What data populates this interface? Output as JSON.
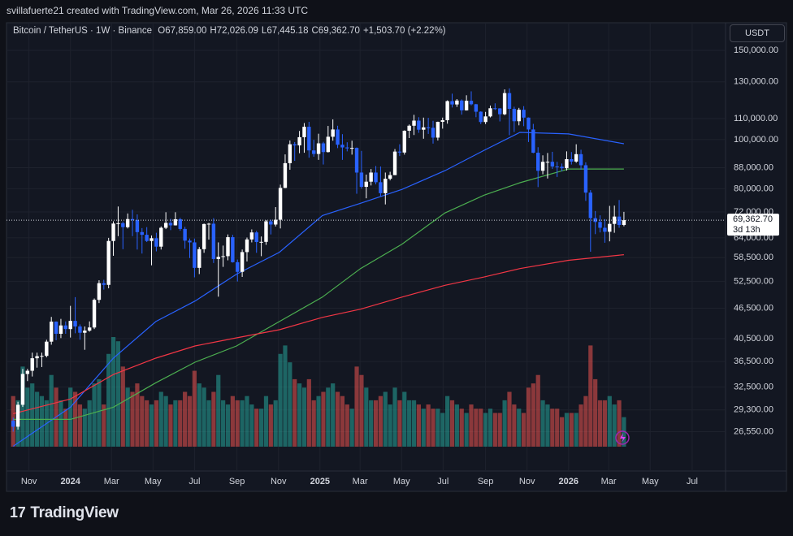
{
  "attribution": "svillafuerte21 created with TradingView.com, Mar 26, 2026 11:33 UTC",
  "logo": "TradingView",
  "chart_data": {
    "type": "candlestick",
    "title": "Bitcoin / TetherUS · 1W · Binance",
    "legend_items": [
      {
        "key": "O",
        "value": "67,859.00"
      },
      {
        "key": "H",
        "value": "72,026.09"
      },
      {
        "key": "L",
        "value": "67,445.18"
      },
      {
        "key": "C",
        "value": "69,362.70"
      }
    ],
    "change": "+1,503.70 (+2.22%)",
    "currency": "USDT",
    "countdown": "3d 13h",
    "price_label": {
      "value": 69362.7,
      "label": "69,362.70"
    },
    "log_scale": true,
    "grid": true,
    "up_color": "#ffffff",
    "down_color": "#2962ff",
    "volume_up_color": "#26a69a",
    "volume_down_color": "#ef5350",
    "xlim": [
      -1.4,
      149.3
    ],
    "xticks": [
      {
        "value": 3.3,
        "label": "Nov"
      },
      {
        "value": 12,
        "label": "2024"
      },
      {
        "value": 20.6,
        "label": "Mar"
      },
      {
        "value": 29.3,
        "label": "May"
      },
      {
        "value": 38,
        "label": "Jul"
      },
      {
        "value": 46.9,
        "label": "Sep"
      },
      {
        "value": 55.6,
        "label": "Nov"
      },
      {
        "value": 64.3,
        "label": "2025"
      },
      {
        "value": 72.7,
        "label": "Mar"
      },
      {
        "value": 81.4,
        "label": "May"
      },
      {
        "value": 90.1,
        "label": "Jul"
      },
      {
        "value": 99,
        "label": "Sep"
      },
      {
        "value": 107.7,
        "label": "Nov"
      },
      {
        "value": 116.4,
        "label": "2026"
      },
      {
        "value": 124.8,
        "label": "Mar"
      },
      {
        "value": 133.5,
        "label": "May"
      },
      {
        "value": 142.3,
        "label": "Jul"
      }
    ],
    "ylim": [
      22200,
      170000
    ],
    "yticks": [
      {
        "value": 150000,
        "label": "150,000.00"
      },
      {
        "value": 130000,
        "label": "130,000.00"
      },
      {
        "value": 110000,
        "label": "110,000.00"
      },
      {
        "value": 100000,
        "label": "100,000.00"
      },
      {
        "value": 88000,
        "label": "88,000.00"
      },
      {
        "value": 80000,
        "label": "80,000.00"
      },
      {
        "value": 72000,
        "label": "72,000.00"
      },
      {
        "value": 64000,
        "label": "64,000.00"
      },
      {
        "value": 58500,
        "label": "58,500.00"
      },
      {
        "value": 52500,
        "label": "52,500.00"
      },
      {
        "value": 46500,
        "label": "46,500.00"
      },
      {
        "value": 40500,
        "label": "40,500.00"
      },
      {
        "value": 36500,
        "label": "36,500.00"
      },
      {
        "value": 32500,
        "label": "32,500.00"
      },
      {
        "value": 29300,
        "label": "29,300.00"
      },
      {
        "value": 26550,
        "label": "26,550.00"
      }
    ],
    "open": [
      27900,
      27150,
      29990,
      34500,
      35000,
      37050,
      37400,
      37450,
      39950,
      43750,
      41400,
      43000,
      42300,
      43900,
      42800,
      41600,
      42000,
      42600,
      48300,
      52100,
      51700,
      63100,
      68300,
      68400,
      67200,
      69700,
      69400,
      65700,
      64900,
      63100,
      63900,
      61500,
      67000,
      68500,
      67750,
      69650,
      66650,
      63200,
      62700,
      55850,
      60800,
      68150,
      68250,
      58150,
      58700,
      58900,
      64200,
      57300,
      54850,
      60000,
      63550,
      65600,
      62800,
      62850,
      69000,
      68000,
      69500,
      80300,
      89850,
      97900,
      97400,
      101100,
      106000,
      95200,
      93700,
      98300,
      94500,
      101300,
      104700,
      97700,
      96500,
      96100,
      96300,
      86100,
      80700,
      82600,
      86100,
      82400,
      78400,
      83700,
      85100,
      94700,
      94300,
      104100,
      106500,
      109000,
      104600,
      105700,
      105500,
      100900,
      108400,
      109200,
      119100,
      117300,
      119400,
      114200,
      119300,
      117400,
      113500,
      108300,
      111100,
      115300,
      115200,
      112200,
      123500,
      115000,
      108700,
      114500,
      110500,
      104700,
      94200,
      86800,
      90400,
      90400,
      88500,
      88400,
      87800,
      91500,
      90500,
      93600,
      89000,
      78600,
      70000,
      68800,
      67000,
      65800,
      68200,
      70500,
      67859
    ],
    "high": [
      28300,
      30400,
      35300,
      35300,
      38000,
      38000,
      38000,
      40300,
      44700,
      43800,
      44300,
      43800,
      47000,
      48900,
      43200,
      42800,
      43800,
      48600,
      52800,
      52900,
      64000,
      69000,
      73800,
      68900,
      71500,
      72700,
      71200,
      66900,
      67200,
      64700,
      65500,
      67400,
      71900,
      69800,
      71900,
      70100,
      67300,
      63800,
      63800,
      61400,
      68300,
      68500,
      70000,
      62700,
      61800,
      65000,
      64900,
      58000,
      60700,
      64100,
      66500,
      66100,
      64400,
      69400,
      69500,
      73600,
      81500,
      93500,
      99600,
      98900,
      104000,
      107800,
      108400,
      99900,
      102700,
      99000,
      106400,
      109600,
      106500,
      102500,
      98800,
      99500,
      96500,
      95000,
      85300,
      87500,
      88700,
      88500,
      86100,
      86400,
      95800,
      97900,
      104300,
      107100,
      111900,
      110700,
      110500,
      110400,
      108900,
      108500,
      110500,
      119500,
      123200,
      120200,
      120000,
      122300,
      124500,
      117600,
      113700,
      113400,
      116700,
      117900,
      115400,
      125600,
      126200,
      116100,
      115500,
      116400,
      110600,
      107400,
      96600,
      93100,
      94100,
      94600,
      90400,
      89700,
      94800,
      94500,
      97900,
      95500,
      90200,
      79500,
      72300,
      70900,
      69700,
      74000,
      74100,
      76000,
      72026.09
    ],
    "low": [
      26550,
      26800,
      29700,
      33400,
      34100,
      35500,
      35600,
      37200,
      39400,
      40200,
      40600,
      41400,
      40700,
      41500,
      40300,
      38500,
      41800,
      42300,
      47600,
      50600,
      50900,
      59000,
      64500,
      60800,
      66800,
      64500,
      60700,
      59600,
      62800,
      56500,
      60200,
      60700,
      66600,
      66300,
      67700,
      66100,
      60900,
      58400,
      53500,
      54300,
      59800,
      63500,
      57100,
      49000,
      56100,
      57800,
      57200,
      52500,
      53600,
      57500,
      62700,
      59800,
      58900,
      62000,
      65000,
      67400,
      66800,
      80200,
      87200,
      90800,
      94000,
      94200,
      92100,
      92500,
      91200,
      89300,
      94300,
      99500,
      96200,
      91200,
      94800,
      93400,
      78200,
      80000,
      76600,
      81200,
      81600,
      77100,
      74500,
      83100,
      85100,
      92800,
      93400,
      100700,
      102100,
      103100,
      100400,
      102600,
      98200,
      99600,
      105100,
      107500,
      115700,
      116000,
      112000,
      114100,
      116800,
      110700,
      107300,
      107300,
      110600,
      114400,
      108600,
      111700,
      102000,
      103500,
      106700,
      106300,
      98900,
      94000,
      80600,
      85400,
      83800,
      87500,
      84400,
      86600,
      86900,
      89300,
      90000,
      87200,
      75700,
      60100,
      65100,
      65600,
      62600,
      63000,
      65500,
      67000,
      67445.18
    ],
    "close": [
      27150,
      29990,
      34500,
      35000,
      37050,
      37400,
      37450,
      39950,
      43750,
      41400,
      43000,
      42300,
      43900,
      42800,
      41600,
      42000,
      42600,
      48300,
      52100,
      51700,
      63100,
      68300,
      68400,
      67200,
      69700,
      69400,
      65700,
      64900,
      63100,
      63900,
      61500,
      67000,
      68500,
      67750,
      69650,
      66650,
      63200,
      62700,
      55850,
      60800,
      68150,
      68250,
      58150,
      58700,
      58900,
      64200,
      57300,
      54850,
      60000,
      63550,
      65600,
      62800,
      62850,
      69000,
      68000,
      69500,
      80300,
      89850,
      97900,
      97400,
      101100,
      106000,
      95200,
      93700,
      98300,
      94500,
      101300,
      104700,
      97700,
      96500,
      96100,
      96300,
      86100,
      80700,
      82600,
      86100,
      82400,
      78400,
      83700,
      85100,
      94700,
      94300,
      104100,
      106500,
      109000,
      104600,
      105700,
      105500,
      100900,
      108400,
      109200,
      119100,
      117300,
      119400,
      114200,
      119300,
      117400,
      113500,
      108300,
      111100,
      115300,
      115200,
      112200,
      123500,
      115000,
      108700,
      114500,
      110500,
      104700,
      94200,
      86800,
      90400,
      90400,
      88500,
      88400,
      87800,
      91500,
      90500,
      93600,
      89000,
      78600,
      70000,
      68800,
      67000,
      65800,
      68200,
      70500,
      67859,
      69362.7
    ],
    "volume": [
      60000,
      55000,
      95000,
      70000,
      75000,
      65000,
      60000,
      55000,
      85000,
      70000,
      55000,
      45000,
      70000,
      65000,
      50000,
      45000,
      55000,
      75000,
      80000,
      50000,
      110000,
      130000,
      125000,
      95000,
      70000,
      65000,
      75000,
      60000,
      55000,
      50000,
      55000,
      65000,
      60000,
      50000,
      55000,
      55000,
      65000,
      60000,
      90000,
      75000,
      70000,
      55000,
      65000,
      85000,
      55000,
      50000,
      60000,
      55000,
      55000,
      60000,
      50000,
      45000,
      45000,
      60000,
      50000,
      55000,
      110000,
      120000,
      100000,
      80000,
      75000,
      70000,
      80000,
      55000,
      60000,
      65000,
      70000,
      75000,
      65000,
      60000,
      50000,
      45000,
      95000,
      85000,
      70000,
      55000,
      55000,
      60000,
      65000,
      50000,
      70000,
      55000,
      65000,
      55000,
      55000,
      50000,
      45000,
      50000,
      45000,
      45000,
      40000,
      60000,
      55000,
      50000,
      45000,
      40000,
      50000,
      45000,
      45000,
      40000,
      45000,
      40000,
      40000,
      55000,
      65000,
      50000,
      45000,
      40000,
      70000,
      75000,
      85000,
      55000,
      50000,
      45000,
      45000,
      35000,
      40000,
      40000,
      40000,
      50000,
      60000,
      120000,
      80000,
      55000,
      55000,
      60000,
      50000,
      55000,
      35000
    ],
    "series": [
      {
        "color": "#2962ff",
        "x": [
          0,
          12,
          21,
          29.9,
          38.1,
          46.8,
          55.8,
          64.8,
          72.8,
          81.5,
          90.5,
          98.7,
          106.2,
          116.4,
          128
        ],
        "values": [
          24840,
          29670,
          37060,
          43770,
          48040,
          54270,
          59960,
          70830,
          74890,
          79760,
          86850,
          95260,
          103330,
          102600,
          98120
        ]
      },
      {
        "color": "#4caf50",
        "x": [
          0,
          12,
          21,
          29.9,
          38.1,
          46.8,
          55.8,
          64.8,
          72.8,
          81.5,
          90.5,
          98.7,
          106.2,
          116.4,
          128
        ],
        "values": [
          28070,
          28070,
          29670,
          33150,
          36390,
          39170,
          43770,
          48920,
          55680,
          62200,
          71670,
          77700,
          82200,
          87500,
          87500
        ]
      },
      {
        "color": "#f23645",
        "x": [
          0,
          12,
          21,
          29.9,
          38.1,
          46.8,
          55.8,
          64.8,
          72.8,
          81.5,
          90.5,
          98.7,
          106.2,
          116.4,
          128
        ],
        "values": [
          28800,
          30790,
          34400,
          37060,
          39170,
          40650,
          42180,
          44600,
          46290,
          48920,
          51600,
          53570,
          55680,
          57810,
          59300
        ]
      }
    ]
  }
}
